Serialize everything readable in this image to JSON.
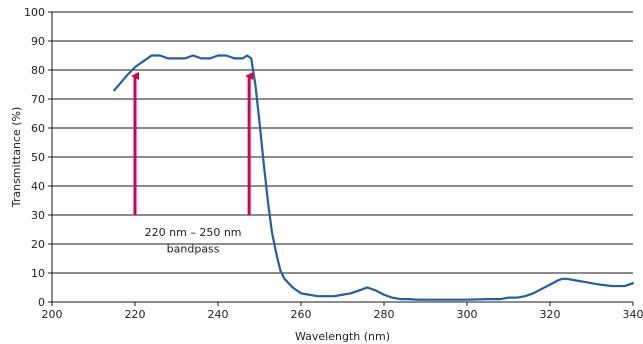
{
  "chart_data": {
    "type": "line",
    "title": "",
    "xlabel": "Wavelength (nm)",
    "ylabel": "Transmittance (%)",
    "xlim": [
      200,
      340
    ],
    "ylim": [
      0,
      100
    ],
    "x_ticks": [
      200,
      220,
      240,
      260,
      280,
      300,
      320,
      340
    ],
    "y_ticks": [
      0,
      10,
      20,
      30,
      40,
      50,
      60,
      70,
      80,
      90,
      100
    ],
    "grid": "horizontal",
    "legend": "none",
    "series": [
      {
        "color": "#1f5fa8",
        "x": [
          215,
          218,
          220,
          222,
          224,
          226,
          228,
          230,
          232,
          234,
          236,
          238,
          240,
          242,
          244,
          246,
          247,
          248,
          249,
          250,
          251,
          252,
          253,
          254,
          255,
          256,
          258,
          260,
          262,
          264,
          266,
          268,
          270,
          272,
          274,
          276,
          278,
          280,
          282,
          284,
          286,
          288,
          290,
          295,
          300,
          305,
          308,
          310,
          312,
          314,
          316,
          318,
          320,
          322,
          323,
          324,
          326,
          328,
          330,
          332,
          335,
          338,
          340
        ],
        "y": [
          73,
          78,
          81,
          83,
          85,
          85,
          84,
          84,
          84,
          85,
          84,
          84,
          85,
          85,
          84,
          84,
          85,
          84,
          75,
          62,
          48,
          35,
          24,
          17,
          11,
          8,
          5,
          3,
          2.5,
          2,
          2,
          2,
          2.5,
          3,
          4,
          5,
          4,
          2.5,
          1.5,
          1,
          1,
          0.8,
          0.8,
          0.8,
          0.8,
          1,
          1,
          1.5,
          1.5,
          2,
          3,
          4.5,
          6,
          7.5,
          8,
          8,
          7.5,
          7,
          6.5,
          6,
          5.5,
          5.5,
          6.5
        ]
      }
    ],
    "arrows": [
      {
        "x": 220,
        "y_start": 30,
        "y_end": 80,
        "color": "#d6004c"
      },
      {
        "x": 247.5,
        "y_start": 30,
        "y_end": 80,
        "color": "#d6004c"
      }
    ],
    "annotation": {
      "line1": "220 nm – 250 nm",
      "line2": "bandpass",
      "x": 234,
      "y1": 22.7,
      "y2": 17
    }
  }
}
